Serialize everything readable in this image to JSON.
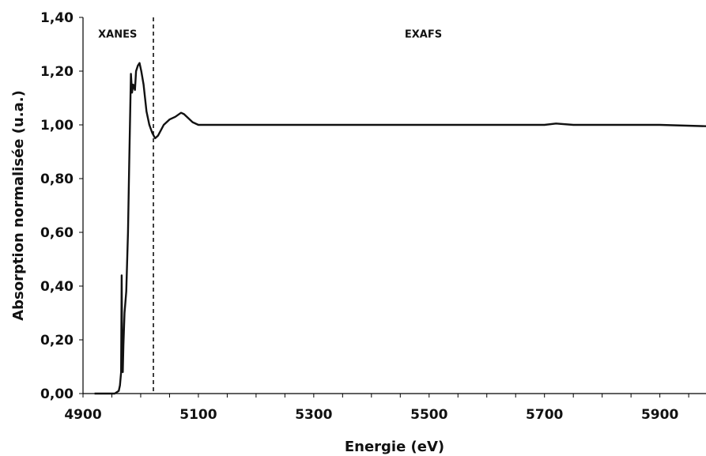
{
  "chart_data": {
    "type": "line",
    "title": "",
    "xlabel": "Energie (eV)",
    "ylabel": "Absorption normalisée (u.a.)",
    "xlim": [
      4900,
      5980
    ],
    "ylim": [
      0,
      1.4
    ],
    "x_ticks": [
      4900,
      5100,
      5300,
      5500,
      5700,
      5900
    ],
    "x_tick_labels": [
      "4900",
      "5100",
      "5300",
      "5500",
      "5700",
      "5900"
    ],
    "y_ticks": [
      0,
      0.2,
      0.4,
      0.6,
      0.8,
      1.0,
      1.2,
      1.4
    ],
    "y_tick_labels": [
      "0,00",
      "0,20",
      "0,40",
      "0,60",
      "0,80",
      "1,00",
      "1,20",
      "1,40"
    ],
    "grid": false,
    "legend": "none",
    "annotations": [
      {
        "text": "XANES",
        "x": 4960,
        "y": 1.34
      },
      {
        "text": "EXAFS",
        "x": 5490,
        "y": 1.34
      }
    ],
    "divider": {
      "x": 5022,
      "style": "dashed"
    },
    "series": [
      {
        "color": "#111111",
        "x": [
          4920,
          4940,
          4955,
          4962,
          4964,
          4966,
          4967,
          4968,
          4969,
          4970,
          4972,
          4975,
          4978,
          4980,
          4983,
          4985,
          4987,
          4990,
          4992,
          4995,
          4998,
          5001,
          5005,
          5010,
          5015,
          5020,
          5025,
          5030,
          5035,
          5040,
          5050,
          5060,
          5070,
          5075,
          5080,
          5090,
          5100,
          5120,
          5150,
          5200,
          5300,
          5400,
          5500,
          5600,
          5700,
          5720,
          5750,
          5800,
          5900,
          5980
        ],
        "y": [
          0.0,
          0.0,
          0.0,
          0.01,
          0.03,
          0.08,
          0.44,
          0.12,
          0.08,
          0.18,
          0.3,
          0.38,
          0.6,
          0.85,
          1.19,
          1.12,
          1.15,
          1.13,
          1.2,
          1.22,
          1.23,
          1.2,
          1.15,
          1.05,
          1.0,
          0.97,
          0.95,
          0.96,
          0.98,
          1.0,
          1.02,
          1.03,
          1.045,
          1.04,
          1.03,
          1.01,
          1.0,
          1.0,
          1.0,
          1.0,
          1.0,
          1.0,
          1.0,
          1.0,
          1.0,
          1.005,
          1.0,
          1.0,
          1.0,
          0.995
        ]
      }
    ]
  }
}
